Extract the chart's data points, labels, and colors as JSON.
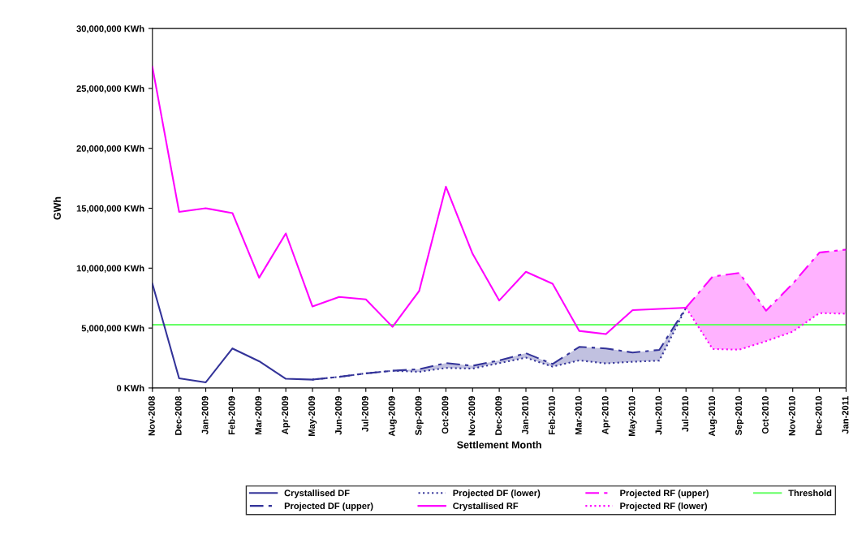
{
  "chart_data": {
    "type": "line",
    "xlabel": "Settlement Month",
    "ylabel": "GWh",
    "categories": [
      "Nov-2008",
      "Dec-2008",
      "Jan-2009",
      "Feb-2009",
      "Mar-2009",
      "Apr-2009",
      "May-2009",
      "Jun-2009",
      "Jul-2009",
      "Aug-2009",
      "Sep-2009",
      "Oct-2009",
      "Nov-2009",
      "Dec-2009",
      "Jan-2010",
      "Feb-2010",
      "Mar-2010",
      "Apr-2010",
      "May-2010",
      "Jun-2010",
      "Jul-2010",
      "Aug-2010",
      "Sep-2010",
      "Oct-2010",
      "Nov-2010",
      "Dec-2010",
      "Jan-2011"
    ],
    "ylim": [
      0,
      30000000
    ],
    "yticks": [
      {
        "value": 0,
        "label": "0 KWh"
      },
      {
        "value": 5000000,
        "label": "5,000,000 KWh"
      },
      {
        "value": 10000000,
        "label": "10,000,000 KWh"
      },
      {
        "value": 15000000,
        "label": "15,000,000 KWh"
      },
      {
        "value": 20000000,
        "label": "20,000,000 KWh"
      },
      {
        "value": 25000000,
        "label": "25,000,000 KWh"
      },
      {
        "value": 30000000,
        "label": "30,000,000 KWh"
      }
    ],
    "grid": false,
    "legend": "bottom",
    "marker": "none",
    "series": [
      {
        "name": "Crystallised DF",
        "color": "#333399",
        "line_style": "solid",
        "values": [
          8700000,
          810000,
          470000,
          3300000,
          2230000,
          770000,
          700000,
          null,
          null,
          null,
          null,
          null,
          null,
          null,
          null,
          null,
          null,
          null,
          null,
          null,
          null,
          null,
          null,
          null,
          null,
          null,
          null
        ]
      },
      {
        "name": "Projected DF (upper)",
        "color": "#333399",
        "line_style": "dashed",
        "values": [
          null,
          null,
          null,
          null,
          null,
          null,
          700000,
          930000,
          1220000,
          1440000,
          1570000,
          2080000,
          1850000,
          2300000,
          2900000,
          2000000,
          3430000,
          3300000,
          2960000,
          3180000,
          6700000,
          null,
          null,
          null,
          null,
          null,
          null
        ],
        "lower": [
          null,
          null,
          null,
          null,
          null,
          null,
          700000,
          930000,
          1220000,
          1440000,
          1350000,
          1670000,
          1620000,
          2070000,
          2530000,
          1780000,
          2300000,
          2050000,
          2190000,
          2280000,
          6700000,
          null,
          null,
          null,
          null,
          null,
          null
        ],
        "upper": [
          null,
          null,
          null,
          null,
          null,
          null,
          700000,
          930000,
          1220000,
          1440000,
          1570000,
          2080000,
          1850000,
          2300000,
          2900000,
          2000000,
          3430000,
          3300000,
          2960000,
          3180000,
          6700000,
          null,
          null,
          null,
          null,
          null,
          null
        ]
      },
      {
        "name": "Projected DF (lower)",
        "color": "#333399",
        "line_style": "dotted",
        "values": [
          null,
          null,
          null,
          null,
          null,
          null,
          700000,
          930000,
          1220000,
          1440000,
          1350000,
          1670000,
          1620000,
          2070000,
          2530000,
          1780000,
          2300000,
          2050000,
          2190000,
          2280000,
          6700000,
          null,
          null,
          null,
          null,
          null,
          null
        ]
      },
      {
        "name": "Crystallised RF",
        "color": "#ff00ff",
        "line_style": "solid",
        "values": [
          26800000,
          14700000,
          15000000,
          14600000,
          9200000,
          12900000,
          6800000,
          7600000,
          7400000,
          5100000,
          8100000,
          16800000,
          11200000,
          7300000,
          9700000,
          8700000,
          4760000,
          4500000,
          6500000,
          6600000,
          6700000,
          null,
          null,
          null,
          null,
          null,
          null
        ]
      },
      {
        "name": "Projected RF (upper)",
        "color": "#ff00ff",
        "line_style": "dashed",
        "values": [
          null,
          null,
          null,
          null,
          null,
          null,
          null,
          null,
          null,
          null,
          null,
          null,
          null,
          null,
          null,
          null,
          null,
          null,
          null,
          null,
          6700000,
          9300000,
          9600000,
          6450000,
          8700000,
          11300000,
          11550000
        ],
        "lower": [
          null,
          null,
          null,
          null,
          null,
          null,
          null,
          null,
          null,
          null,
          null,
          null,
          null,
          null,
          null,
          null,
          null,
          null,
          null,
          null,
          6700000,
          3250000,
          3200000,
          3900000,
          4700000,
          6250000,
          6200000
        ],
        "upper": [
          null,
          null,
          null,
          null,
          null,
          null,
          null,
          null,
          null,
          null,
          null,
          null,
          null,
          null,
          null,
          null,
          null,
          null,
          null,
          null,
          6700000,
          9300000,
          9600000,
          6450000,
          8700000,
          11300000,
          11550000
        ]
      },
      {
        "name": "Projected RF (lower)",
        "color": "#ff00ff",
        "line_style": "dotted",
        "values": [
          null,
          null,
          null,
          null,
          null,
          null,
          null,
          null,
          null,
          null,
          null,
          null,
          null,
          null,
          null,
          null,
          null,
          null,
          null,
          null,
          6700000,
          3250000,
          3200000,
          3900000,
          4700000,
          6250000,
          6200000
        ]
      }
    ],
    "ref_lines": [
      {
        "axis": "y",
        "value": 5280000,
        "label": "Threshold",
        "color": "#66ff66",
        "line_style": "solid"
      }
    ]
  }
}
